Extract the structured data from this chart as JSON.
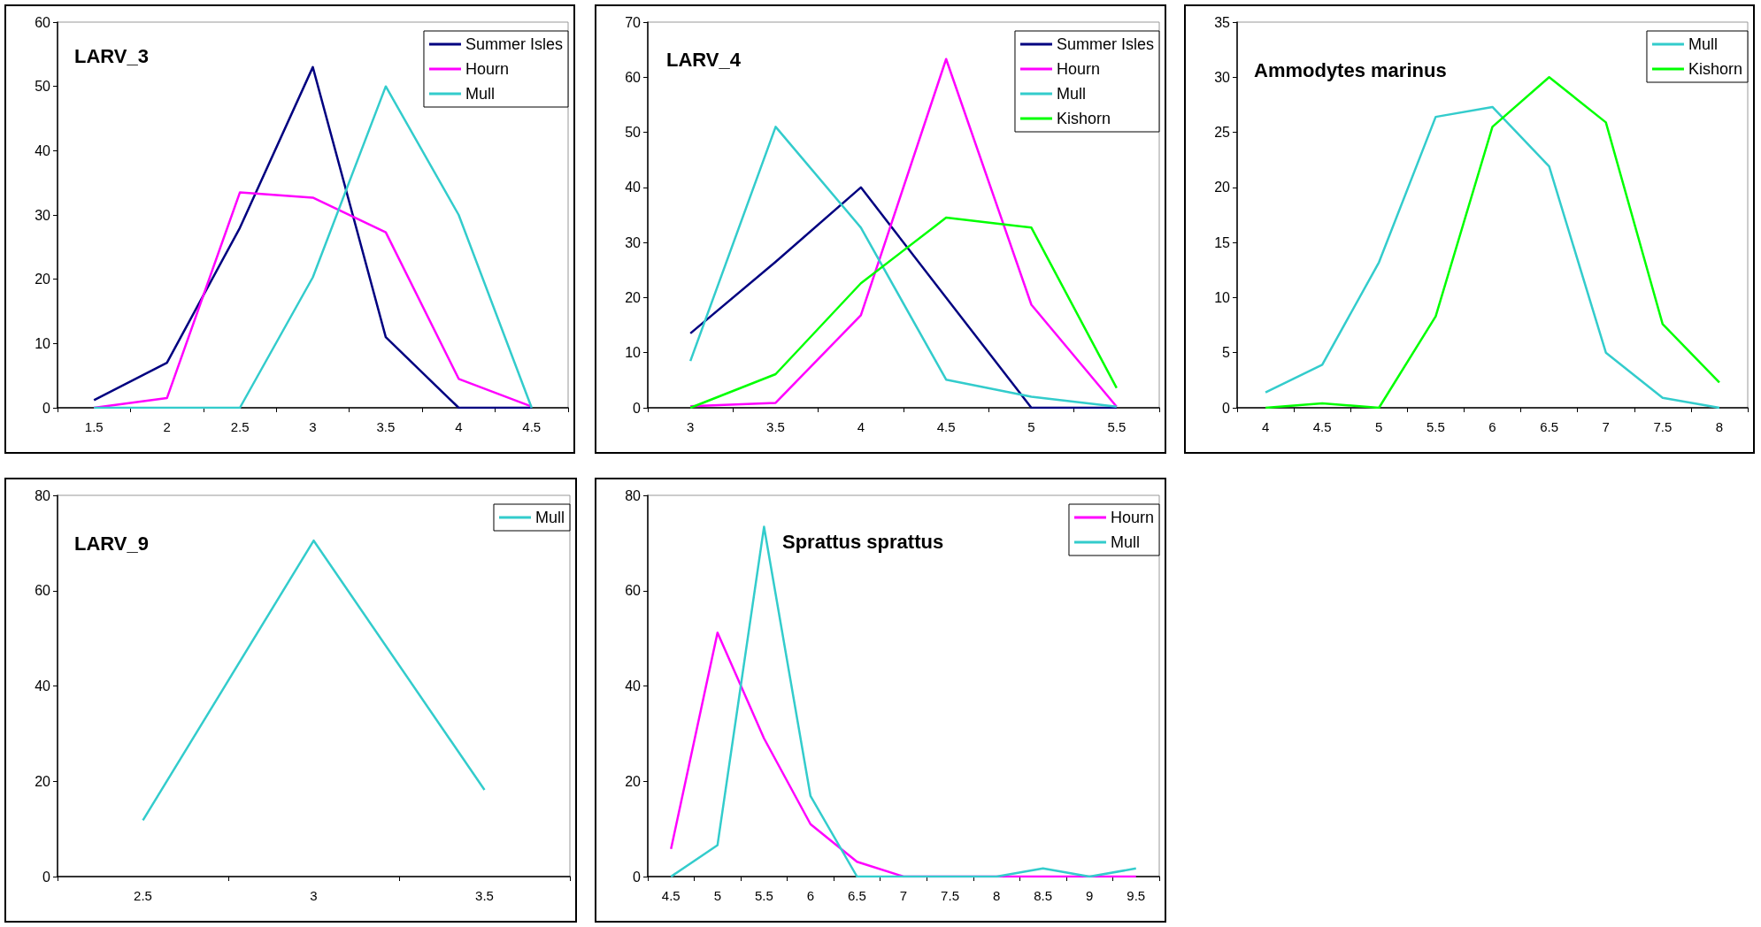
{
  "chart_data": [
    {
      "type": "line",
      "title": "LARV_3",
      "categories": [
        "1.5",
        "2",
        "2.5",
        "3",
        "3.5",
        "4",
        "4.5"
      ],
      "ylim": [
        0,
        60
      ],
      "yticks": [
        0,
        10,
        20,
        30,
        40,
        50,
        60
      ],
      "legend": "top right",
      "marker": "none",
      "series": [
        {
          "name": "Summer Isles",
          "color": "#000080",
          "values": [
            1.2,
            7,
            28,
            53,
            11,
            0,
            0
          ]
        },
        {
          "name": "Hourn",
          "color": "#ff00ff",
          "values": [
            0,
            1.5,
            33.5,
            32.7,
            27.3,
            4.5,
            0.2
          ]
        },
        {
          "name": "Mull",
          "color": "#33cccc",
          "values": [
            0,
            0,
            0,
            20.3,
            50,
            30,
            0
          ]
        }
      ]
    },
    {
      "type": "line",
      "title": "LARV_4",
      "categories": [
        "3",
        "3.5",
        "4",
        "4.5",
        "5",
        "5.5"
      ],
      "ylim": [
        0,
        70
      ],
      "yticks": [
        0,
        10,
        20,
        30,
        40,
        50,
        60,
        70
      ],
      "legend": "top right",
      "marker": "none",
      "series": [
        {
          "name": "Summer Isles",
          "color": "#000080",
          "values": [
            13.5,
            26.5,
            40,
            20,
            0,
            0
          ]
        },
        {
          "name": "Hourn",
          "color": "#ff00ff",
          "values": [
            0.3,
            0.9,
            16.8,
            63.3,
            18.7,
            0.2
          ]
        },
        {
          "name": "Mull",
          "color": "#33cccc",
          "values": [
            8.5,
            51,
            32.7,
            5.1,
            2,
            0.2
          ]
        },
        {
          "name": "Kishorn",
          "color": "#00ff00",
          "values": [
            0,
            6.1,
            22.6,
            34.5,
            32.7,
            3.6
          ]
        }
      ]
    },
    {
      "type": "line",
      "title": "Ammodytes marinus",
      "categories": [
        "4",
        "4.5",
        "5",
        "5.5",
        "6",
        "6.5",
        "7",
        "7.5",
        "8"
      ],
      "ylim": [
        0,
        35
      ],
      "yticks": [
        0,
        5,
        10,
        15,
        20,
        25,
        30,
        35
      ],
      "legend": "top right",
      "marker": "none",
      "series": [
        {
          "name": "Mull",
          "color": "#33cccc",
          "values": [
            1.4,
            3.9,
            13.2,
            26.4,
            27.3,
            21.9,
            5,
            0.9,
            0
          ]
        },
        {
          "name": "Kishorn",
          "color": "#00ff00",
          "values": [
            0,
            0.4,
            0,
            8.3,
            25.5,
            30,
            25.9,
            7.6,
            2.3
          ]
        }
      ]
    },
    {
      "type": "line",
      "title": "LARV_9",
      "categories": [
        "2.5",
        "3",
        "3.5"
      ],
      "ylim": [
        0,
        80
      ],
      "yticks": [
        0,
        20,
        40,
        60,
        80
      ],
      "legend": "top right",
      "marker": "none",
      "series": [
        {
          "name": "Mull",
          "color": "#33cccc",
          "values": [
            11.8,
            70.5,
            18.2
          ]
        }
      ]
    },
    {
      "type": "line",
      "title": "Sprattus sprattus",
      "categories": [
        "4.5",
        "5",
        "5.5",
        "6",
        "6.5",
        "7",
        "7.5",
        "8",
        "8.5",
        "9",
        "9.5"
      ],
      "ylim": [
        0,
        80
      ],
      "yticks": [
        0,
        20,
        40,
        60,
        80
      ],
      "legend": "top right",
      "marker": "none",
      "series": [
        {
          "name": "Hourn",
          "color": "#ff00ff",
          "values": [
            5.8,
            51.2,
            29,
            11,
            3.1,
            0,
            0,
            0,
            0,
            0,
            0
          ]
        },
        {
          "name": "Mull",
          "color": "#33cccc",
          "values": [
            0,
            6.6,
            73.4,
            16.9,
            0,
            0,
            0,
            0,
            1.7,
            0,
            1.7
          ]
        }
      ]
    }
  ]
}
